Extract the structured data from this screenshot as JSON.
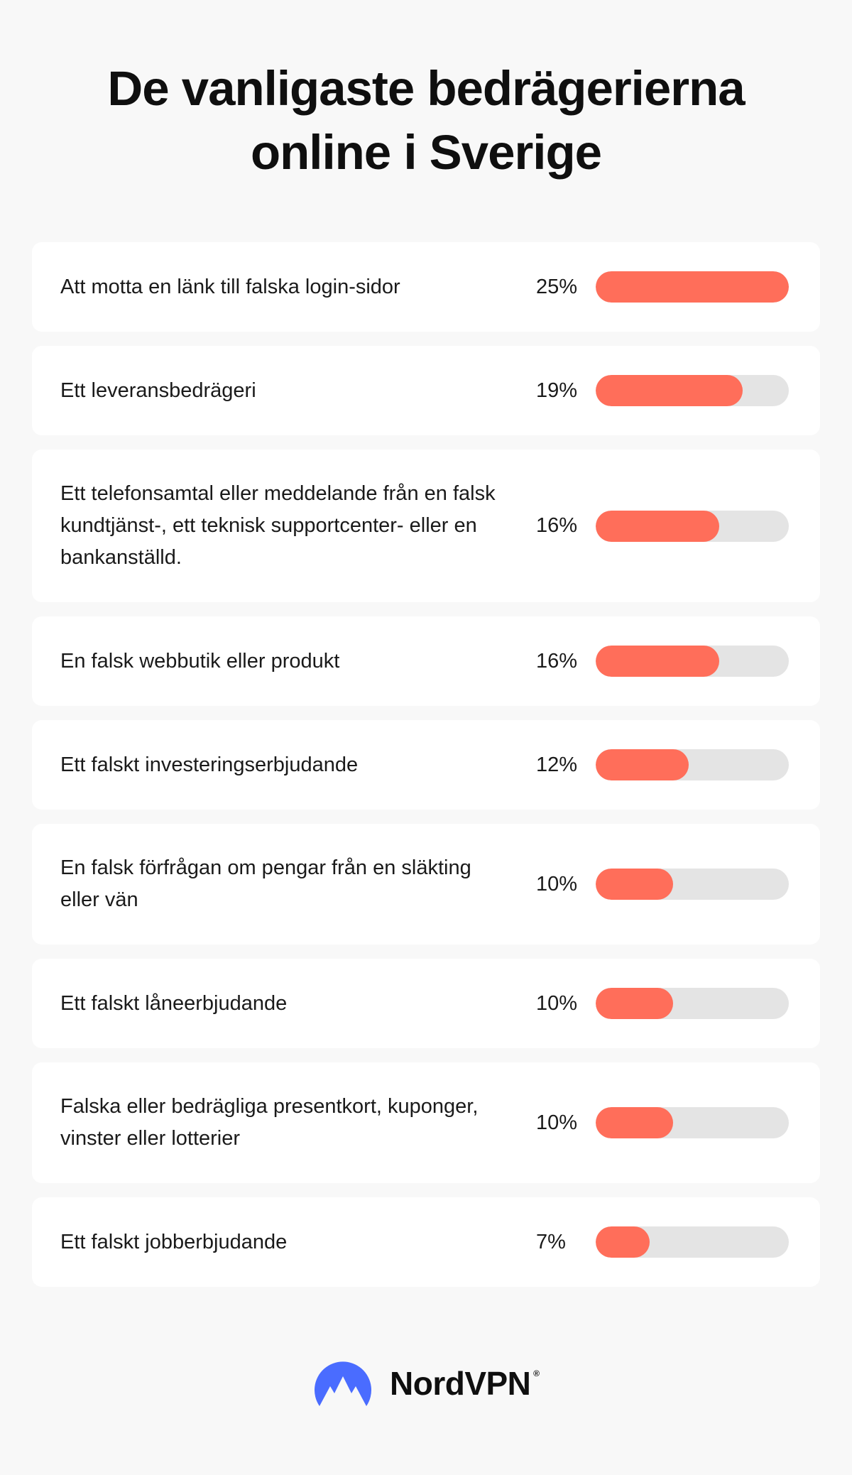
{
  "title_line1": "De vanligaste bedrägerierna",
  "title_line2": "online i Sverige",
  "colors": {
    "fill": "#ff6e5a",
    "track": "#e4e4e4",
    "logo_blue": "#4a6cff"
  },
  "chart_data": {
    "type": "bar",
    "orientation": "horizontal",
    "title": "De vanligaste bedrägerierna online i Sverige",
    "xlim": [
      0,
      25
    ],
    "categories": [
      "Att motta en länk till falska login-sidor",
      "Ett leveransbedrägeri",
      "Ett telefonsamtal eller meddelande från en falsk kundtjänst-, ett teknisk supportcenter- eller en bankanställd.",
      "En falsk webbutik eller produkt",
      "Ett falskt investeringserbjudande",
      "En falsk förfrågan om pengar från en släkting eller vän",
      "Ett falskt låneerbjudande",
      "Falska eller bedrägliga presentkort, kuponger, vinster eller lotterier",
      "Ett falskt jobberbjudande"
    ],
    "values": [
      25,
      19,
      16,
      16,
      12,
      10,
      10,
      10,
      7
    ],
    "value_labels": [
      "25%",
      "19%",
      "16%",
      "16%",
      "12%",
      "10%",
      "10%",
      "10%",
      "7%"
    ]
  },
  "brand": {
    "name": "NordVPN",
    "reg": "®"
  }
}
